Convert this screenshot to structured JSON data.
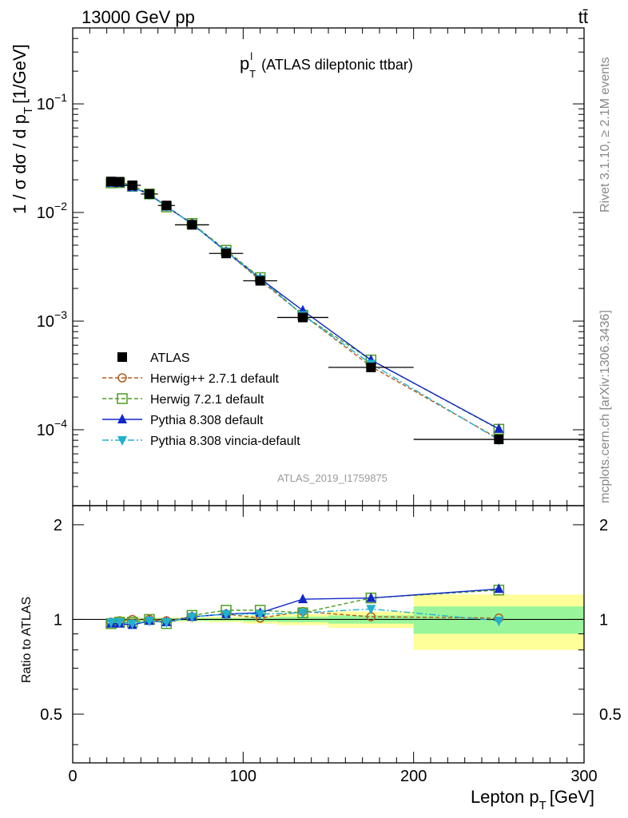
{
  "header": {
    "energy_label": "13000 GeV pp",
    "process_label": "tt̄"
  },
  "side_labels": {
    "rivet": "Rivet 3.1.10, ≥ 2.1M events",
    "mcplots": "mcplots.cern.ch [arXiv:1306.3436]"
  },
  "chart_data": {
    "type": "line",
    "title_main": "p",
    "title_sup": "l",
    "title_sub": "T",
    "title_rest": "(ATLAS dileptonic ttbar)",
    "analysis_id": "ATLAS_2019_I1759875",
    "xlabel_main": "Lepton p",
    "xlabel_sub": "T",
    "xlabel_rest": "[GeV]",
    "ylabel_main": "1 / σ  dσ / d p",
    "ylabel_sub": "T",
    "ylabel_rest": "[1/GeV]",
    "ratio_ylabel": "Ratio to ATLAS",
    "xlim": [
      0,
      300
    ],
    "ylim": [
      2e-05,
      0.5
    ],
    "yscale": "log",
    "ratio_ylim": [
      0.35,
      2.3
    ],
    "x_ticks": [
      "0",
      "100",
      "200",
      "300"
    ],
    "y_ticks": [
      {
        "base": "10",
        "exp": "−1"
      },
      {
        "base": "10",
        "exp": "−2"
      },
      {
        "base": "10",
        "exp": "−3"
      },
      {
        "base": "10",
        "exp": "−4"
      }
    ],
    "ratio_ticks": [
      "2",
      "1",
      "0.5"
    ],
    "legend_position": "center-left",
    "data": {
      "name": "ATLAS",
      "x": [
        22.5,
        27.5,
        35,
        45,
        55,
        70,
        90,
        110,
        135,
        175,
        250
      ],
      "xerr": [
        2.5,
        2.5,
        5,
        5,
        5,
        10,
        10,
        10,
        15,
        25,
        50
      ],
      "y": [
        0.0193,
        0.0192,
        0.0178,
        0.0148,
        0.0116,
        0.0077,
        0.0042,
        0.00235,
        0.00108,
        0.000375,
        8.15e-05
      ],
      "band_inner": [
        0.005,
        0.005,
        0.008,
        0.008,
        0.01,
        0.01,
        0.01,
        0.015,
        0.02,
        0.03,
        0.1
      ],
      "band_outer": [
        0.01,
        0.01,
        0.012,
        0.012,
        0.015,
        0.015,
        0.02,
        0.03,
        0.04,
        0.06,
        0.2
      ]
    },
    "series": [
      {
        "name": "Herwig++ 2.7.1 default",
        "color": "#b35a1b",
        "dash": "5,3",
        "marker": "circle-open",
        "ratio": [
          0.98,
          0.99,
          1.0,
          1.0,
          0.99,
          1.02,
          1.04,
          1.01,
          1.06,
          1.02,
          1.01
        ]
      },
      {
        "name": "Herwig 7.2.1 default",
        "color": "#4f9e1f",
        "dash": "5,3",
        "marker": "square-open",
        "ratio": [
          0.97,
          0.98,
          0.98,
          1.0,
          0.97,
          1.03,
          1.07,
          1.07,
          1.05,
          1.17,
          1.24
        ]
      },
      {
        "name": "Pythia 8.308 default",
        "color": "#1027c8",
        "dash": "",
        "marker": "triangle-up",
        "ratio": [
          0.97,
          0.97,
          0.96,
          0.99,
          0.98,
          1.02,
          1.04,
          1.05,
          1.16,
          1.17,
          1.25
        ]
      },
      {
        "name": "Pythia 8.308 vincia-default",
        "color": "#20b0d0",
        "dash": "8,3,2,3",
        "marker": "triangle-down",
        "ratio": [
          0.98,
          0.98,
          0.97,
          0.99,
          0.98,
          1.02,
          1.04,
          1.04,
          1.05,
          1.08,
          0.99
        ]
      }
    ]
  }
}
